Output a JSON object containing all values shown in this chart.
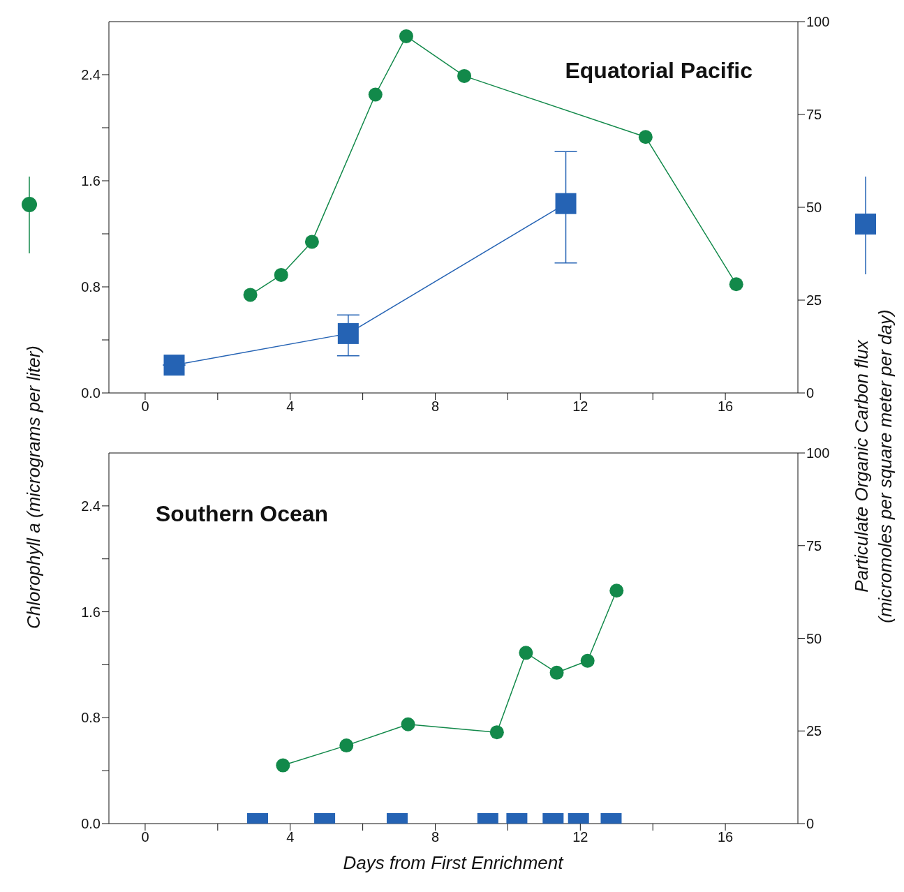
{
  "chart_data": [
    {
      "type": "line",
      "title": "Equatorial Pacific",
      "ylabel": "Chlorophyll a  (micrograms per liter)",
      "y2label": "Particulate Organic Carbon flux\n(micromoles per square meter per day)",
      "xlim": [
        -1,
        18
      ],
      "xticks": [
        0,
        {
          "value": 2,
          "label": null
        },
        4,
        {
          "value": 6,
          "label": null
        },
        8,
        {
          "value": 10,
          "label": null
        },
        12,
        {
          "value": 14,
          "label": null
        },
        16
      ],
      "ylim": [
        0,
        2.8
      ],
      "yticks": [
        {
          "value": 0,
          "label": "0.0"
        },
        {
          "value": 0.4,
          "label": null
        },
        {
          "value": 0.8,
          "label": "0.8"
        },
        {
          "value": 1.2,
          "label": null
        },
        {
          "value": 1.6,
          "label": "1.6"
        },
        {
          "value": 2.0,
          "label": null
        },
        {
          "value": 2.4,
          "label": "2.4"
        }
      ],
      "y2lim": [
        0,
        100
      ],
      "y2ticks": [
        0,
        25,
        50,
        75,
        100
      ],
      "series": [
        {
          "marker": "circle",
          "color": "#12894a",
          "x": [
            2.9,
            3.75,
            4.6,
            6.35,
            7.2,
            8.8,
            13.8,
            16.3
          ],
          "values": [
            0.74,
            0.89,
            1.14,
            2.25,
            2.69,
            2.39,
            1.93,
            0.82
          ]
        },
        {
          "marker": "square",
          "axis": "y2",
          "color": "#2563b4",
          "x": [
            0.8,
            5.6,
            11.6
          ],
          "values": [
            7.5,
            16,
            51
          ],
          "errors": [
            null,
            [
              10,
              21
            ],
            [
              35,
              65
            ]
          ]
        }
      ]
    },
    {
      "type": "line",
      "title": "Southern Ocean",
      "xlabel": "Days from First Enrichment",
      "xlim": [
        -1,
        18
      ],
      "xticks": [
        0,
        {
          "value": 2,
          "label": null
        },
        4,
        {
          "value": 6,
          "label": null
        },
        8,
        {
          "value": 10,
          "label": null
        },
        12,
        {
          "value": 14,
          "label": null
        },
        16
      ],
      "ylim": [
        0,
        2.8
      ],
      "yticks": [
        {
          "value": 0,
          "label": "0.0"
        },
        {
          "value": 0.4,
          "label": null
        },
        {
          "value": 0.8,
          "label": "0.8"
        },
        {
          "value": 1.2,
          "label": null
        },
        {
          "value": 1.6,
          "label": "1.6"
        },
        {
          "value": 2.0,
          "label": null
        },
        {
          "value": 2.4,
          "label": "2.4"
        }
      ],
      "y2lim": [
        0,
        100
      ],
      "y2ticks": [
        0,
        25,
        50,
        75,
        100
      ],
      "series": [
        {
          "marker": "circle",
          "color": "#12894a",
          "x": [
            3.8,
            5.55,
            7.25,
            9.7,
            10.5,
            11.35,
            12.2,
            13.0
          ],
          "values": [
            0.44,
            0.59,
            0.75,
            0.69,
            1.29,
            1.14,
            1.23,
            1.76
          ]
        },
        {
          "type": "scatter",
          "marker": "square",
          "axis": "y2",
          "color": "#2563b4",
          "x": [
            3.1,
            4.95,
            6.95,
            9.45,
            10.25,
            11.25,
            11.95,
            12.85
          ],
          "values": [
            0,
            0,
            0,
            0,
            0,
            0,
            0,
            0
          ]
        }
      ]
    }
  ]
}
